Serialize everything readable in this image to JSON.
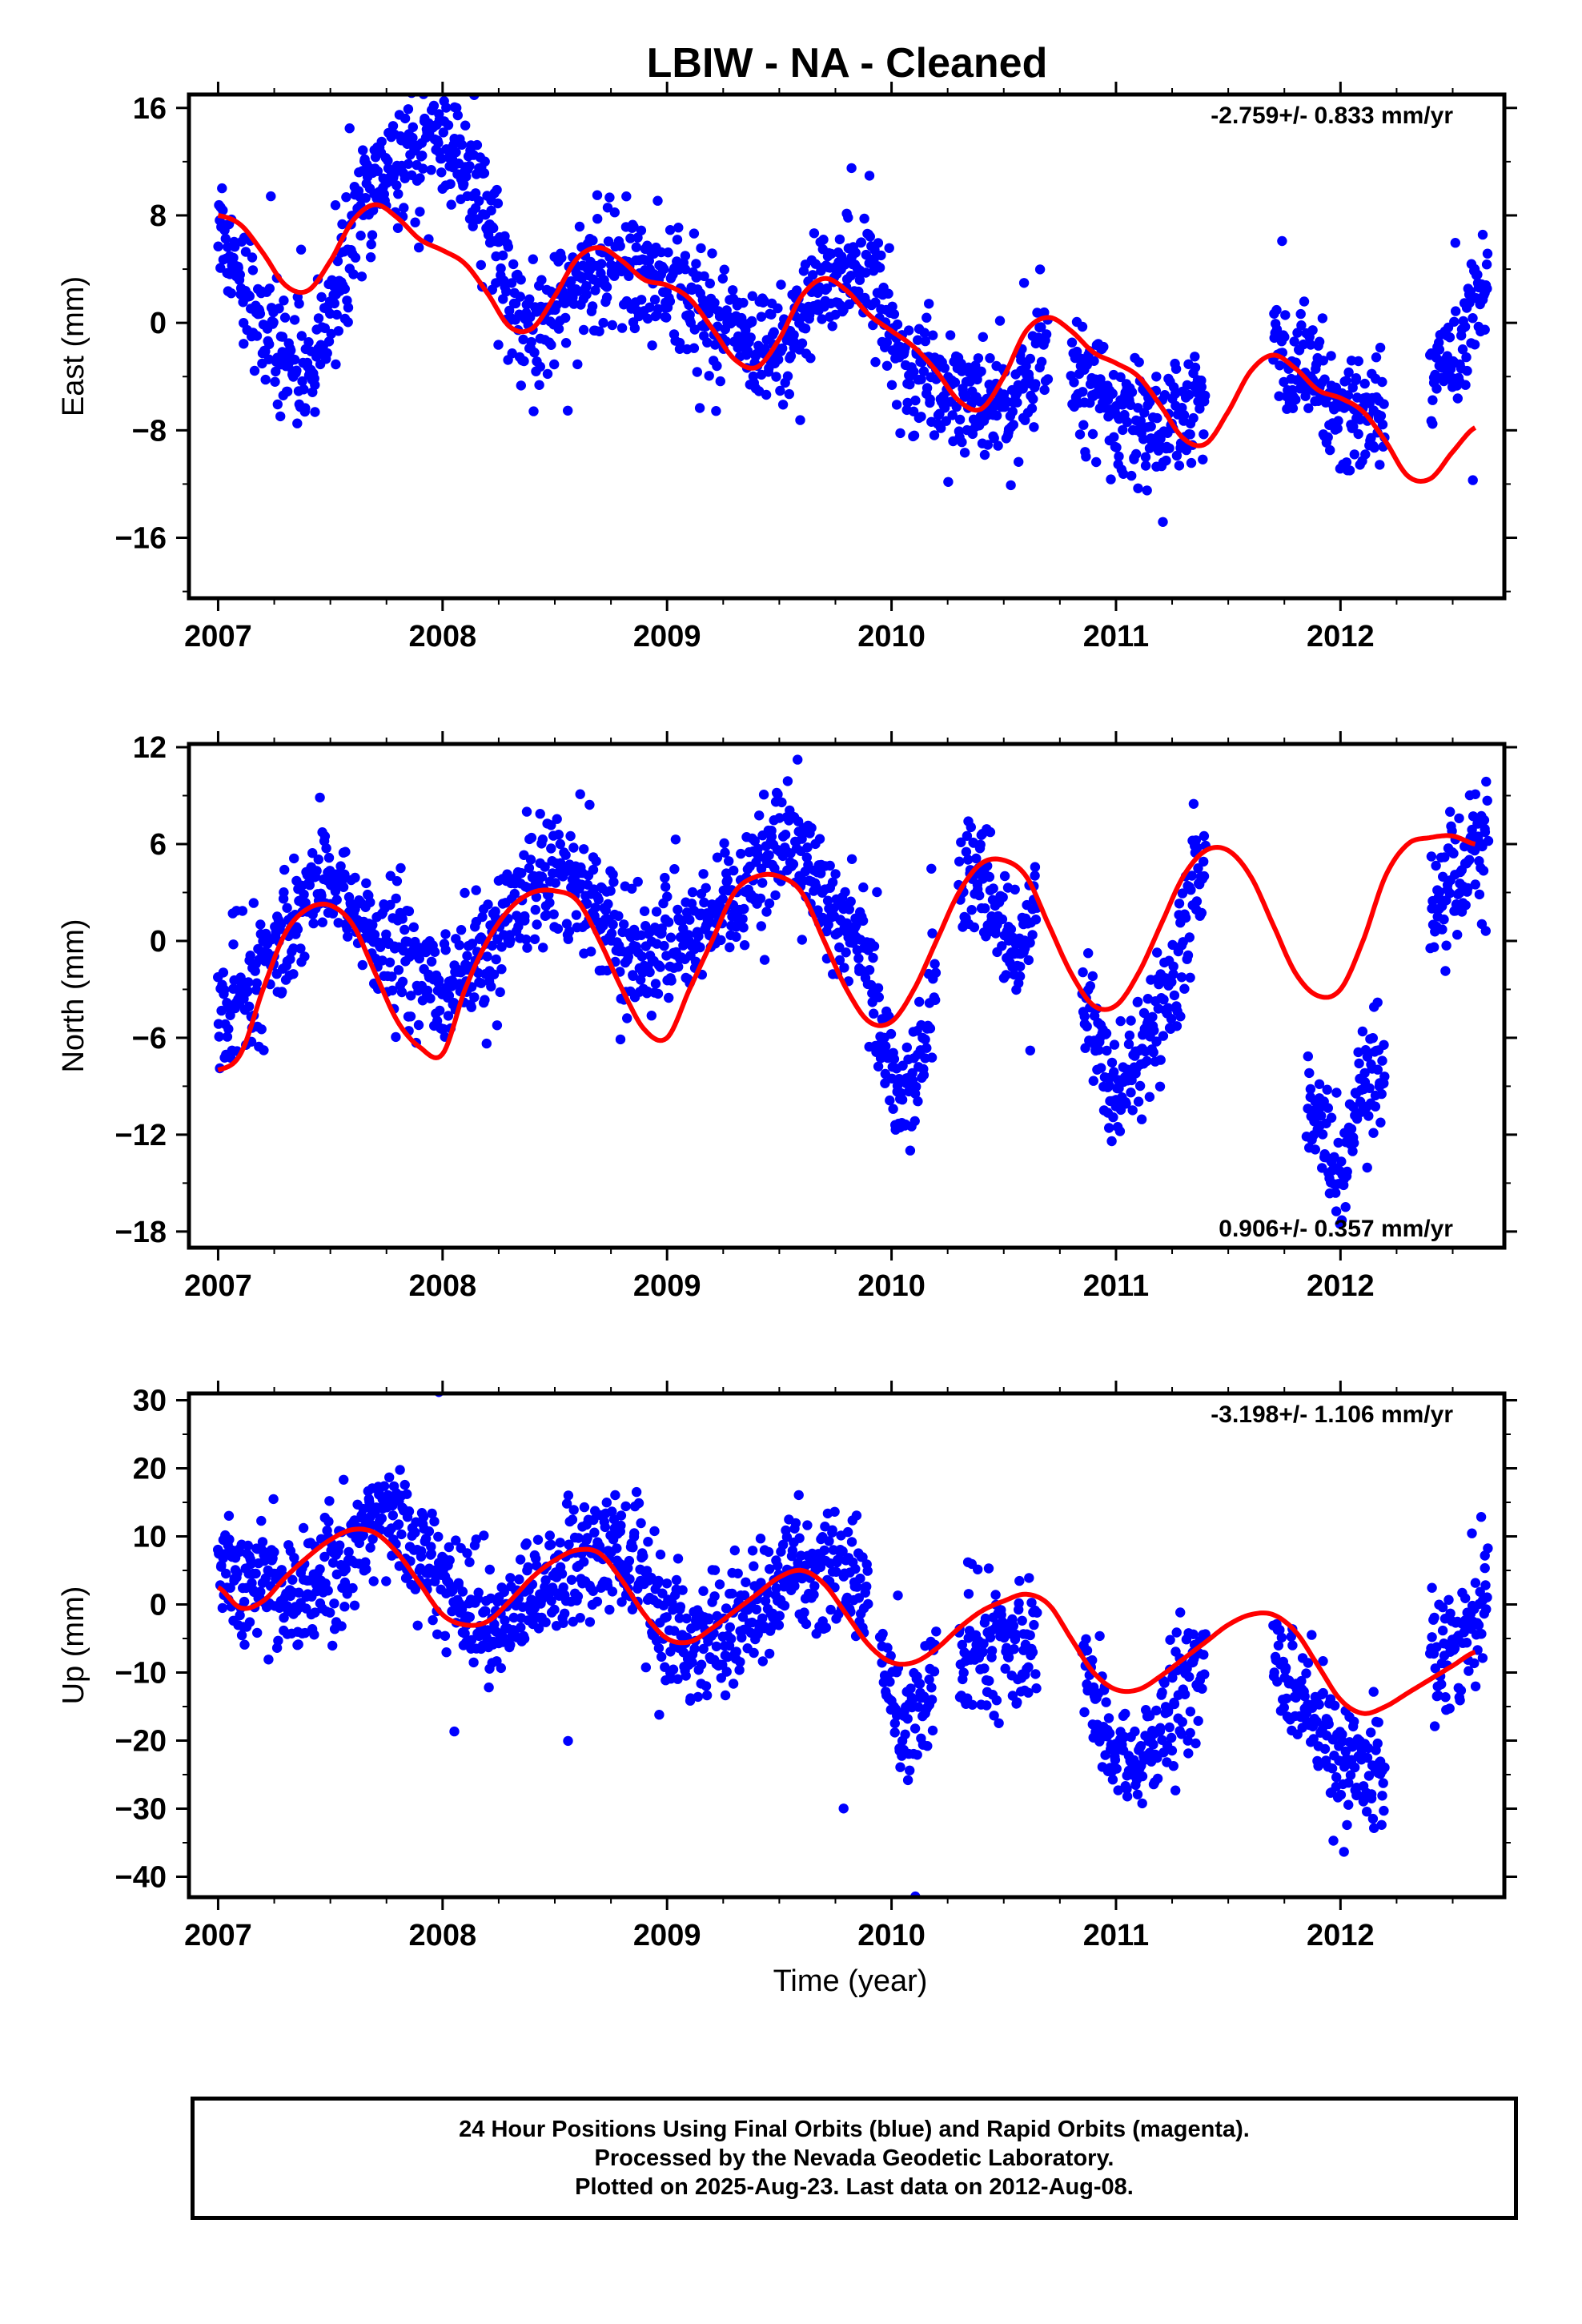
{
  "figure": {
    "title": "LBIW  - NA - Cleaned",
    "time_axis_label": "Time (year)"
  },
  "colors": {
    "points": "#0000ff",
    "fit": "#ff0000",
    "frame": "#000000"
  },
  "footer": {
    "line1": "24 Hour Positions Using Final Orbits (blue) and Rapid Orbits (magenta).",
    "line2": "Processed by the Nevada Geodetic Laboratory.",
    "line3": "Plotted on 2025-Aug-23. Last data on 2012-Aug-08."
  },
  "chart_data": [
    {
      "type": "scatter",
      "component": "East",
      "ylabel": "East (mm)",
      "ylim": [
        -20.5,
        17
      ],
      "xlim": [
        2006.87,
        2012.73
      ],
      "x_ticks": [
        2007,
        2008,
        2009,
        2010,
        2011,
        2012
      ],
      "y_ticks": [
        -16,
        -8,
        0,
        8,
        16
      ],
      "rate_label": "-2.759+/- 0.833 mm/yr",
      "rate_label_position": "top-right",
      "series": [
        {
          "kind": "points",
          "segments": [
            {
              "x": [
                2007.0,
                2007.05,
                2007.12,
                2007.2,
                2007.3,
                2007.38,
                2007.45,
                2007.52,
                2007.6,
                2007.7,
                2007.8,
                2007.9,
                2008.0,
                2008.1,
                2008.2,
                2008.28,
                2008.35,
                2008.42,
                2008.5,
                2008.6,
                2008.7,
                2008.8,
                2008.9,
                2009.0,
                2009.1,
                2009.2,
                2009.3,
                2009.4,
                2009.5,
                2009.6,
                2009.7,
                2009.8,
                2009.9,
                2010.0
              ],
              "y": [
                8,
                6,
                3,
                0,
                -3,
                -4,
                -3,
                2,
                7,
                11,
                12,
                13,
                14,
                12,
                8,
                3,
                0,
                -1,
                1,
                3,
                4,
                4,
                3,
                3,
                2,
                0,
                -1,
                -2,
                -2,
                0,
                3,
                4,
                3,
                0
              ]
            },
            {
              "x": [
                2010.0,
                2010.05,
                2010.1,
                2010.2,
                2010.3,
                2010.4,
                2010.45,
                2010.5,
                2010.55,
                2010.6,
                2010.7
              ],
              "y": [
                -2,
                -3,
                -4,
                -4,
                -5,
                -6,
                -7,
                -7,
                -6,
                -4,
                0
              ]
            },
            {
              "x": [
                2010.8,
                2010.9,
                2011.0,
                2011.1,
                2011.2,
                2011.3,
                2011.4
              ],
              "y": [
                -3,
                -5,
                -6,
                -7,
                -8,
                -7,
                -6
              ]
            },
            {
              "x": [
                2011.7,
                2011.8,
                2011.9,
                2012.0,
                2012.1,
                2012.2
              ],
              "y": [
                -2,
                -4,
                -5,
                -6,
                -7,
                -6
              ]
            },
            {
              "x": [
                2012.4,
                2012.5,
                2012.6,
                2012.66
              ],
              "y": [
                -4,
                -2,
                1,
                4
              ]
            }
          ],
          "spread": 2.2
        },
        {
          "kind": "fit",
          "x": [
            2007.0,
            2007.1,
            2007.2,
            2007.3,
            2007.4,
            2007.5,
            2007.6,
            2007.7,
            2007.8,
            2007.9,
            2008.0,
            2008.1,
            2008.2,
            2008.3,
            2008.4,
            2008.5,
            2008.6,
            2008.7,
            2008.8,
            2008.9,
            2009.0,
            2009.1,
            2009.2,
            2009.3,
            2009.4,
            2009.5,
            2009.6,
            2009.7,
            2009.8,
            2009.9,
            2010.0,
            2010.1,
            2010.2,
            2010.3,
            2010.4,
            2010.5,
            2010.6,
            2010.7,
            2010.8,
            2010.9,
            2011.0,
            2011.1,
            2011.2,
            2011.3,
            2011.4,
            2011.5,
            2011.6,
            2011.7,
            2011.8,
            2011.9,
            2012.0,
            2012.1,
            2012.2,
            2012.3,
            2012.4,
            2012.5,
            2012.6
          ],
          "y": [
            8,
            7.3,
            5.2,
            2.8,
            2.4,
            4.6,
            7.6,
            8.8,
            7.8,
            6.2,
            5.4,
            4.4,
            2.2,
            -0.3,
            -0.4,
            2.0,
            4.8,
            5.6,
            4.6,
            3.2,
            2.8,
            1.8,
            -0.4,
            -2.7,
            -3.3,
            -1.2,
            2.0,
            3.3,
            2.4,
            0.6,
            -0.6,
            -1.8,
            -3.6,
            -5.8,
            -6.4,
            -4.0,
            -0.6,
            0.4,
            -0.6,
            -2.2,
            -3.0,
            -4.0,
            -6.2,
            -8.6,
            -9.0,
            -6.6,
            -3.6,
            -2.4,
            -3.4,
            -5.0,
            -5.6,
            -6.6,
            -8.8,
            -11.4,
            -11.6,
            -9.6,
            -7.8
          ]
        }
      ]
    },
    {
      "type": "scatter",
      "component": "North",
      "ylabel": "North (mm)",
      "ylim": [
        -19,
        12.2
      ],
      "xlim": [
        2006.87,
        2012.73
      ],
      "x_ticks": [
        2007,
        2008,
        2009,
        2010,
        2011,
        2012
      ],
      "y_ticks": [
        -18,
        -12,
        -6,
        0,
        6,
        12
      ],
      "rate_label": "0.906+/- 0.357 mm/yr",
      "rate_label_position": "bottom-right",
      "series": [
        {
          "kind": "points",
          "segments": [
            {
              "x": [
                2007.0,
                2007.1,
                2007.2,
                2007.3,
                2007.4,
                2007.45,
                2007.5,
                2007.6,
                2007.7,
                2007.8,
                2007.9,
                2008.0,
                2008.1,
                2008.2,
                2008.3,
                2008.4,
                2008.45,
                2008.5,
                2008.6,
                2008.7,
                2008.8,
                2008.9,
                2009.0,
                2009.1,
                2009.2,
                2009.3,
                2009.4,
                2009.5,
                2009.6,
                2009.7,
                2009.8,
                2009.9
              ],
              "y": [
                -5,
                -3,
                -2,
                0,
                3,
                4,
                4,
                2,
                0,
                -1,
                -2,
                -3,
                -2,
                -1,
                1,
                4,
                5,
                5,
                3,
                2,
                0,
                -1,
                0,
                0,
                1,
                2,
                4,
                6,
                5,
                3,
                1,
                -1
              ]
            },
            {
              "x": [
                2009.9,
                2010.0,
                2010.05,
                2010.1,
                2010.15,
                2010.2
              ],
              "y": [
                -2,
                -8,
                -10,
                -8,
                -5,
                -3
              ]
            },
            {
              "x": [
                2010.3,
                2010.4,
                2010.45,
                2010.5,
                2010.55,
                2010.6,
                2010.65
              ],
              "y": [
                3,
                4,
                2,
                1,
                -2,
                1,
                4
              ]
            },
            {
              "x": [
                2010.85,
                2010.9,
                2011.0,
                2011.1,
                2011.2,
                2011.3,
                2011.35,
                2011.4
              ],
              "y": [
                -3,
                -6,
                -9,
                -7,
                -5,
                0,
                3,
                5
              ]
            },
            {
              "x": [
                2011.85,
                2011.9,
                2012.0,
                2012.1,
                2012.2
              ],
              "y": [
                -8,
                -12,
                -14,
                -10,
                -8
              ]
            },
            {
              "x": [
                2012.4,
                2012.5,
                2012.6,
                2012.66
              ],
              "y": [
                3,
                4,
                5,
                6
              ]
            }
          ],
          "spread": 1.9
        },
        {
          "kind": "fit",
          "x": [
            2007.0,
            2007.1,
            2007.2,
            2007.3,
            2007.4,
            2007.5,
            2007.6,
            2007.7,
            2007.8,
            2007.9,
            2008.0,
            2008.1,
            2008.2,
            2008.3,
            2008.4,
            2008.5,
            2008.6,
            2008.7,
            2008.8,
            2008.9,
            2009.0,
            2009.1,
            2009.2,
            2009.3,
            2009.4,
            2009.5,
            2009.6,
            2009.7,
            2009.8,
            2009.9,
            2010.0,
            2010.1,
            2010.2,
            2010.3,
            2010.4,
            2010.5,
            2010.6,
            2010.7,
            2010.8,
            2010.9,
            2011.0,
            2011.1,
            2011.2,
            2011.3,
            2011.4,
            2011.5,
            2011.6,
            2011.7,
            2011.8,
            2011.9,
            2012.0,
            2012.1,
            2012.2,
            2012.3,
            2012.4,
            2012.5,
            2012.6
          ],
          "y": [
            -8,
            -7,
            -3,
            0.5,
            2,
            2.2,
            1,
            -2,
            -5,
            -6.6,
            -7,
            -3,
            0,
            2,
            3,
            3.1,
            2.5,
            0,
            -3,
            -5.5,
            -6,
            -3,
            0,
            3,
            4,
            4,
            3,
            0,
            -3,
            -5,
            -5,
            -3,
            0,
            3,
            4.8,
            5,
            4,
            1,
            -2,
            -4,
            -4,
            -2,
            1,
            4,
            5.6,
            5.6,
            4,
            1,
            -2,
            -3.4,
            -3,
            0,
            4,
            6,
            6.4,
            6.5,
            6
          ]
        }
      ]
    },
    {
      "type": "scatter",
      "component": "Up",
      "ylabel": "Up (mm)",
      "ylim": [
        -43,
        31
      ],
      "xlim": [
        2006.87,
        2012.73
      ],
      "x_ticks": [
        2007,
        2008,
        2009,
        2010,
        2011,
        2012
      ],
      "y_ticks": [
        -40,
        -30,
        -20,
        -10,
        0,
        10,
        20,
        30
      ],
      "rate_label": "-3.198+/- 1.106 mm/yr",
      "rate_label_position": "top-right",
      "series": [
        {
          "kind": "points",
          "segments": [
            {
              "x": [
                2007.0,
                2007.1,
                2007.2,
                2007.3,
                2007.4,
                2007.5,
                2007.6,
                2007.7,
                2007.8,
                2007.9,
                2008.0,
                2008.1,
                2008.2,
                2008.3,
                2008.4,
                2008.5,
                2008.6,
                2008.7,
                2008.8,
                2008.9,
                2009.0,
                2009.1,
                2009.2,
                2009.3,
                2009.4,
                2009.5,
                2009.6,
                2009.7,
                2009.8,
                2009.9
              ],
              "y": [
                6,
                2,
                4,
                2,
                1,
                5,
                9,
                14,
                12,
                8,
                4,
                0,
                -3,
                -2,
                1,
                3,
                6,
                8,
                7,
                3,
                -3,
                -5,
                -4,
                -2,
                0,
                3,
                5,
                6,
                5,
                3
              ]
            },
            {
              "x": [
                2009.95,
                2010.0,
                2010.05,
                2010.1,
                2010.15,
                2010.2
              ],
              "y": [
                -8,
                -12,
                -16,
                -18,
                -14,
                -10
              ]
            },
            {
              "x": [
                2010.3,
                2010.4,
                2010.5,
                2010.55,
                2010.6,
                2010.65
              ],
              "y": [
                -7,
                -6,
                -6,
                -8,
                -6,
                -4
              ]
            },
            {
              "x": [
                2010.85,
                2010.9,
                2011.0,
                2011.1,
                2011.2,
                2011.3,
                2011.35,
                2011.4
              ],
              "y": [
                -6,
                -14,
                -22,
                -24,
                -18,
                -14,
                -10,
                -8
              ]
            },
            {
              "x": [
                2011.7,
                2011.8,
                2011.9,
                2012.0,
                2012.1,
                2012.2
              ],
              "y": [
                -8,
                -12,
                -18,
                -24,
                -26,
                -22
              ]
            },
            {
              "x": [
                2012.4,
                2012.5,
                2012.6,
                2012.66
              ],
              "y": [
                -5,
                -6,
                -4,
                2
              ]
            }
          ],
          "spread": 4.5
        },
        {
          "kind": "fit",
          "x": [
            2007.0,
            2007.1,
            2007.2,
            2007.3,
            2007.4,
            2007.5,
            2007.6,
            2007.7,
            2007.8,
            2007.9,
            2008.0,
            2008.1,
            2008.2,
            2008.3,
            2008.4,
            2008.5,
            2008.6,
            2008.7,
            2008.8,
            2008.9,
            2009.0,
            2009.1,
            2009.2,
            2009.3,
            2009.4,
            2009.5,
            2009.6,
            2009.7,
            2009.8,
            2009.9,
            2010.0,
            2010.1,
            2010.2,
            2010.3,
            2010.4,
            2010.5,
            2010.6,
            2010.7,
            2010.8,
            2010.9,
            2011.0,
            2011.1,
            2011.2,
            2011.3,
            2011.4,
            2011.5,
            2011.6,
            2011.7,
            2011.8,
            2011.9,
            2012.0,
            2012.1,
            2012.2,
            2012.3,
            2012.4,
            2012.5,
            2012.6
          ],
          "y": [
            2.5,
            -0.5,
            0.5,
            4,
            7,
            9.5,
            11,
            10.5,
            7.5,
            3,
            -1.5,
            -3,
            -2.5,
            0.5,
            4,
            6.5,
            8,
            7.5,
            3.5,
            -1.5,
            -5,
            -5.5,
            -3.5,
            -1,
            1.5,
            4,
            5,
            3,
            -1.5,
            -6,
            -8.5,
            -8.5,
            -6.5,
            -3.5,
            -1,
            0.5,
            1.5,
            0,
            -5,
            -10,
            -12.5,
            -12.5,
            -10.5,
            -8,
            -5.5,
            -3,
            -1.5,
            -1.5,
            -4,
            -9,
            -14,
            -16,
            -15,
            -13,
            -11,
            -9,
            -7
          ]
        }
      ]
    }
  ]
}
